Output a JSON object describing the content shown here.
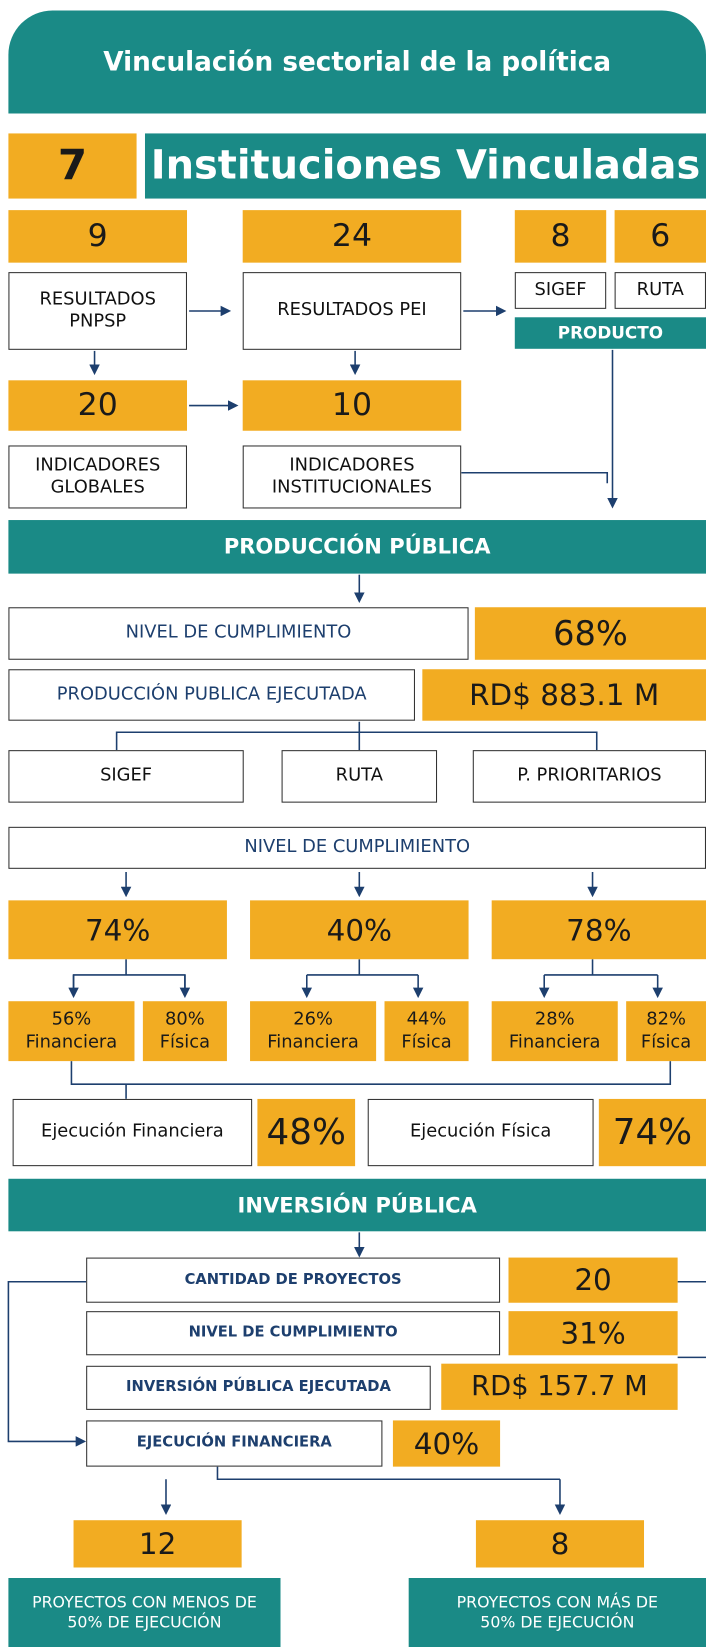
{
  "header": {
    "title": "Vinculación sectorial de la política"
  },
  "instituciones": {
    "count": "7",
    "label": "Instituciones Vinculadas"
  },
  "vinculacion": {
    "pnpsp": {
      "count": "9",
      "label": "RESULTADOS PNPSP"
    },
    "pei": {
      "count": "24",
      "label": "RESULTADOS PEI"
    },
    "sigef": {
      "count": "8",
      "label": "SIGEF"
    },
    "ruta": {
      "count": "6",
      "label": "RUTA"
    },
    "producto": "PRODUCTO",
    "globales": {
      "count": "20",
      "label": "INDICADORES GLOBALES"
    },
    "institucionales": {
      "count": "10",
      "label": "INDICADORES INSTITUCIONALES"
    }
  },
  "produccion": {
    "title": "PRODUCCIÓN PÚBLICA",
    "cumplimiento": {
      "label": "NIVEL DE CUMPLIMIENTO",
      "value": "68%"
    },
    "ejecutada": {
      "label": "PRODUCCIÓN PUBLICA EJECUTADA",
      "value": "RD$ 883.1 M"
    },
    "fuentes": [
      "SIGEF",
      "RUTA",
      "P. PRIORITARIOS"
    ],
    "nivel": "NIVEL DE CUMPLIMIENTO",
    "grupos": [
      {
        "value": "74%",
        "financiera": {
          "value": "56%",
          "label": "Financiera"
        },
        "fisica": {
          "value": "80%",
          "label": "Física"
        }
      },
      {
        "value": "40%",
        "financiera": {
          "value": "26%",
          "label": "Financiera"
        },
        "fisica": {
          "value": "44%",
          "label": "Física"
        }
      },
      {
        "value": "78%",
        "financiera": {
          "value": "28%",
          "label": "Financiera"
        },
        "fisica": {
          "value": "82%",
          "label": "Física"
        }
      }
    ],
    "ejecucion_financiera": {
      "label": "Ejecución Financiera",
      "value": "48%"
    },
    "ejecucion_fisica": {
      "label": "Ejecución Física",
      "value": "74%"
    }
  },
  "inversion": {
    "title": "INVERSIÓN PÚBLICA",
    "proyectos": {
      "label": "CANTIDAD DE PROYECTOS",
      "value": "20"
    },
    "cumplimiento": {
      "label": "NIVEL DE CUMPLIMIENTO",
      "value": "31%"
    },
    "ejecutada": {
      "label": "INVERSIÓN PÚBLICA EJECUTADA",
      "value": "RD$ 157.7 M"
    },
    "financiera": {
      "label": "EJECUCIÓN FINANCIERA",
      "value": "40%"
    },
    "menos": {
      "count": "12",
      "label": "PROYECTOS CON MENOS DE 50% DE EJECUCIÓN"
    },
    "mas": {
      "count": "8",
      "label": "PROYECTOS CON MÁS DE 50% DE EJECUCIÓN"
    }
  }
}
